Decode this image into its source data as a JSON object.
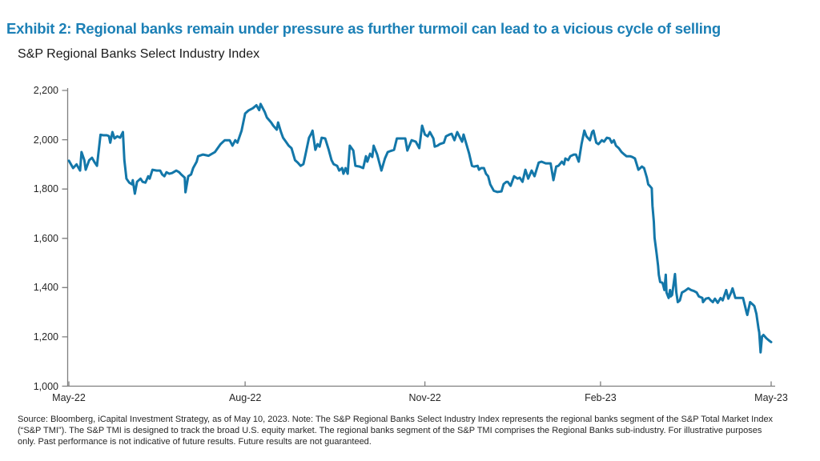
{
  "page": {
    "title": "Exhibit 2: Regional banks remain under pressure as further turmoil can lead to a vicious cycle of selling",
    "title_color": "#1C80B6",
    "background_color": "#FFFFFF"
  },
  "chart": {
    "subtitle": "S&P Regional Banks Select Industry Index",
    "line_color": "#1377A9",
    "axis_color": "#7F7F7F",
    "tick_label_color": "#262626"
  },
  "source_note": {
    "line1": "Source: Bloomberg, iCapital Investment Strategy, as of May 10, 2023. Note: The S&P Regional Banks Select Industry Index represents the regional banks segment of the S&P Total Market Index",
    "line2": "(“S&P TMI”). The S&P TMI is designed to track the broad U.S. equity market. The regional banks segment of the S&P TMI comprises the Regional Banks sub-industry. For illustrative purposes",
    "line3": "only. Past performance is not indicative of future results. Future results are not guaranteed."
  },
  "chart_data": {
    "type": "line",
    "title": "S&P Regional Banks Select Industry Index",
    "series_name": "S&P Regional Banks Select Industry Index",
    "legend": false,
    "grid": false,
    "x_axis": {
      "ticks": [
        "May-22",
        "Aug-22",
        "Nov-22",
        "Feb-23",
        "May-23"
      ],
      "tick_t": [
        0.0,
        0.251,
        0.507,
        0.757,
        1.0
      ]
    },
    "y_axis": {
      "range": [
        1000,
        2200
      ],
      "tick_values": [
        1000,
        1200,
        1400,
        1600,
        1800,
        2000,
        2200
      ],
      "tick_labels": [
        "1,000",
        "1,200",
        "1,400",
        "1,600",
        "1,800",
        "2,000",
        "2,200"
      ]
    },
    "points": [
      [
        0.0,
        1915
      ],
      [
        0.006,
        1885
      ],
      [
        0.011,
        1900
      ],
      [
        0.016,
        1875
      ],
      [
        0.018,
        1950
      ],
      [
        0.022,
        1917
      ],
      [
        0.024,
        1878
      ],
      [
        0.029,
        1917
      ],
      [
        0.033,
        1927
      ],
      [
        0.037,
        1907
      ],
      [
        0.04,
        1894
      ],
      [
        0.045,
        2020
      ],
      [
        0.049,
        2018
      ],
      [
        0.054,
        2018
      ],
      [
        0.057,
        2015
      ],
      [
        0.059,
        1988
      ],
      [
        0.062,
        2031
      ],
      [
        0.065,
        2005
      ],
      [
        0.069,
        2014
      ],
      [
        0.073,
        2008
      ],
      [
        0.077,
        2031
      ],
      [
        0.079,
        1917
      ],
      [
        0.082,
        1842
      ],
      [
        0.086,
        1826
      ],
      [
        0.09,
        1819
      ],
      [
        0.091,
        1836
      ],
      [
        0.094,
        1781
      ],
      [
        0.097,
        1829
      ],
      [
        0.102,
        1842
      ],
      [
        0.105,
        1829
      ],
      [
        0.109,
        1826
      ],
      [
        0.113,
        1852
      ],
      [
        0.115,
        1842
      ],
      [
        0.119,
        1878
      ],
      [
        0.125,
        1875
      ],
      [
        0.13,
        1875
      ],
      [
        0.133,
        1859
      ],
      [
        0.136,
        1852
      ],
      [
        0.139,
        1868
      ],
      [
        0.143,
        1862
      ],
      [
        0.147,
        1865
      ],
      [
        0.153,
        1875
      ],
      [
        0.157,
        1868
      ],
      [
        0.16,
        1859
      ],
      [
        0.165,
        1846
      ],
      [
        0.166,
        1787
      ],
      [
        0.17,
        1852
      ],
      [
        0.174,
        1859
      ],
      [
        0.177,
        1885
      ],
      [
        0.182,
        1911
      ],
      [
        0.184,
        1933
      ],
      [
        0.191,
        1940
      ],
      [
        0.199,
        1935
      ],
      [
        0.208,
        1950
      ],
      [
        0.216,
        1982
      ],
      [
        0.222,
        1998
      ],
      [
        0.229,
        1998
      ],
      [
        0.233,
        1976
      ],
      [
        0.237,
        1998
      ],
      [
        0.24,
        1988
      ],
      [
        0.246,
        2037
      ],
      [
        0.251,
        2106
      ],
      [
        0.256,
        2119
      ],
      [
        0.262,
        2128
      ],
      [
        0.267,
        2140
      ],
      [
        0.271,
        2120
      ],
      [
        0.273,
        2145
      ],
      [
        0.279,
        2112
      ],
      [
        0.282,
        2090
      ],
      [
        0.288,
        2070
      ],
      [
        0.291,
        2057
      ],
      [
        0.296,
        2041
      ],
      [
        0.298,
        2070
      ],
      [
        0.302,
        2031
      ],
      [
        0.305,
        2008
      ],
      [
        0.309,
        1992
      ],
      [
        0.313,
        1976
      ],
      [
        0.317,
        1966
      ],
      [
        0.322,
        1917
      ],
      [
        0.326,
        1907
      ],
      [
        0.33,
        1894
      ],
      [
        0.334,
        1901
      ],
      [
        0.337,
        1940
      ],
      [
        0.342,
        2008
      ],
      [
        0.345,
        2024
      ],
      [
        0.347,
        2037
      ],
      [
        0.351,
        1959
      ],
      [
        0.354,
        1982
      ],
      [
        0.357,
        1972
      ],
      [
        0.36,
        2008
      ],
      [
        0.365,
        2005
      ],
      [
        0.37,
        1959
      ],
      [
        0.374,
        1917
      ],
      [
        0.377,
        1901
      ],
      [
        0.382,
        1894
      ],
      [
        0.385,
        1875
      ],
      [
        0.389,
        1885
      ],
      [
        0.391,
        1862
      ],
      [
        0.394,
        1885
      ],
      [
        0.397,
        1862
      ],
      [
        0.4,
        1976
      ],
      [
        0.405,
        1956
      ],
      [
        0.408,
        1894
      ],
      [
        0.414,
        1891
      ],
      [
        0.419,
        1885
      ],
      [
        0.423,
        1933
      ],
      [
        0.425,
        1911
      ],
      [
        0.429,
        1943
      ],
      [
        0.432,
        1930
      ],
      [
        0.434,
        1976
      ],
      [
        0.439,
        1940
      ],
      [
        0.445,
        1875
      ],
      [
        0.45,
        1924
      ],
      [
        0.454,
        1950
      ],
      [
        0.459,
        1955
      ],
      [
        0.463,
        1959
      ],
      [
        0.467,
        2005
      ],
      [
        0.473,
        2005
      ],
      [
        0.479,
        2005
      ],
      [
        0.482,
        1956
      ],
      [
        0.488,
        1998
      ],
      [
        0.494,
        1992
      ],
      [
        0.499,
        1966
      ],
      [
        0.503,
        2057
      ],
      [
        0.507,
        2021
      ],
      [
        0.511,
        2014
      ],
      [
        0.514,
        2031
      ],
      [
        0.519,
        2005
      ],
      [
        0.521,
        1972
      ],
      [
        0.525,
        1976
      ],
      [
        0.528,
        1982
      ],
      [
        0.534,
        1988
      ],
      [
        0.537,
        2014
      ],
      [
        0.542,
        2021
      ],
      [
        0.545,
        2024
      ],
      [
        0.549,
        1998
      ],
      [
        0.553,
        2031
      ],
      [
        0.557,
        2008
      ],
      [
        0.56,
        1992
      ],
      [
        0.562,
        2021
      ],
      [
        0.566,
        1982
      ],
      [
        0.57,
        1943
      ],
      [
        0.574,
        1894
      ],
      [
        0.577,
        1891
      ],
      [
        0.582,
        1894
      ],
      [
        0.584,
        1878
      ],
      [
        0.587,
        1885
      ],
      [
        0.591,
        1885
      ],
      [
        0.594,
        1862
      ],
      [
        0.597,
        1852
      ],
      [
        0.6,
        1819
      ],
      [
        0.605,
        1793
      ],
      [
        0.61,
        1788
      ],
      [
        0.616,
        1790
      ],
      [
        0.619,
        1820
      ],
      [
        0.623,
        1829
      ],
      [
        0.625,
        1829
      ],
      [
        0.629,
        1813
      ],
      [
        0.634,
        1852
      ],
      [
        0.639,
        1842
      ],
      [
        0.642,
        1846
      ],
      [
        0.646,
        1829
      ],
      [
        0.65,
        1878
      ],
      [
        0.654,
        1842
      ],
      [
        0.657,
        1862
      ],
      [
        0.659,
        1875
      ],
      [
        0.663,
        1852
      ],
      [
        0.669,
        1907
      ],
      [
        0.673,
        1911
      ],
      [
        0.679,
        1904
      ],
      [
        0.686,
        1904
      ],
      [
        0.69,
        1836
      ],
      [
        0.694,
        1891
      ],
      [
        0.697,
        1894
      ],
      [
        0.702,
        1911
      ],
      [
        0.705,
        1900
      ],
      [
        0.707,
        1924
      ],
      [
        0.711,
        1917
      ],
      [
        0.714,
        1933
      ],
      [
        0.719,
        1940
      ],
      [
        0.722,
        1940
      ],
      [
        0.726,
        1911
      ],
      [
        0.73,
        1982
      ],
      [
        0.734,
        2037
      ],
      [
        0.737,
        2014
      ],
      [
        0.742,
        1998
      ],
      [
        0.745,
        2031
      ],
      [
        0.747,
        2037
      ],
      [
        0.751,
        1988
      ],
      [
        0.754,
        1982
      ],
      [
        0.759,
        1998
      ],
      [
        0.762,
        1992
      ],
      [
        0.766,
        2008
      ],
      [
        0.77,
        2005
      ],
      [
        0.773,
        1988
      ],
      [
        0.776,
        1998
      ],
      [
        0.779,
        1976
      ],
      [
        0.783,
        1966
      ],
      [
        0.787,
        1950
      ],
      [
        0.791,
        1940
      ],
      [
        0.794,
        1933
      ],
      [
        0.799,
        1933
      ],
      [
        0.802,
        1930
      ],
      [
        0.806,
        1924
      ],
      [
        0.811,
        1878
      ],
      [
        0.816,
        1891
      ],
      [
        0.819,
        1885
      ],
      [
        0.823,
        1846
      ],
      [
        0.825,
        1819
      ],
      [
        0.827,
        1813
      ],
      [
        0.83,
        1803
      ],
      [
        0.831,
        1732
      ],
      [
        0.833,
        1667
      ],
      [
        0.834,
        1602
      ],
      [
        0.837,
        1537
      ],
      [
        0.839,
        1488
      ],
      [
        0.84,
        1452
      ],
      [
        0.842,
        1423
      ],
      [
        0.845,
        1420
      ],
      [
        0.846,
        1413
      ],
      [
        0.848,
        1390
      ],
      [
        0.85,
        1452
      ],
      [
        0.851,
        1380
      ],
      [
        0.854,
        1358
      ],
      [
        0.856,
        1390
      ],
      [
        0.857,
        1364
      ],
      [
        0.859,
        1370
      ],
      [
        0.863,
        1455
      ],
      [
        0.865,
        1380
      ],
      [
        0.867,
        1341
      ],
      [
        0.87,
        1348
      ],
      [
        0.873,
        1380
      ],
      [
        0.877,
        1386
      ],
      [
        0.882,
        1397
      ],
      [
        0.886,
        1390
      ],
      [
        0.89,
        1386
      ],
      [
        0.894,
        1380
      ],
      [
        0.897,
        1364
      ],
      [
        0.902,
        1358
      ],
      [
        0.903,
        1341
      ],
      [
        0.907,
        1355
      ],
      [
        0.911,
        1358
      ],
      [
        0.914,
        1348
      ],
      [
        0.917,
        1341
      ],
      [
        0.92,
        1355
      ],
      [
        0.924,
        1338
      ],
      [
        0.928,
        1358
      ],
      [
        0.931,
        1348
      ],
      [
        0.936,
        1390
      ],
      [
        0.939,
        1355
      ],
      [
        0.943,
        1380
      ],
      [
        0.945,
        1397
      ],
      [
        0.949,
        1358
      ],
      [
        0.953,
        1358
      ],
      [
        0.96,
        1358
      ],
      [
        0.965,
        1299
      ],
      [
        0.966,
        1289
      ],
      [
        0.97,
        1341
      ],
      [
        0.974,
        1331
      ],
      [
        0.976,
        1325
      ],
      [
        0.979,
        1293
      ],
      [
        0.982,
        1234
      ],
      [
        0.983,
        1218
      ],
      [
        0.985,
        1137
      ],
      [
        0.987,
        1202
      ],
      [
        0.989,
        1208
      ],
      [
        0.993,
        1195
      ],
      [
        0.997,
        1185
      ],
      [
        1.0,
        1179
      ]
    ]
  }
}
